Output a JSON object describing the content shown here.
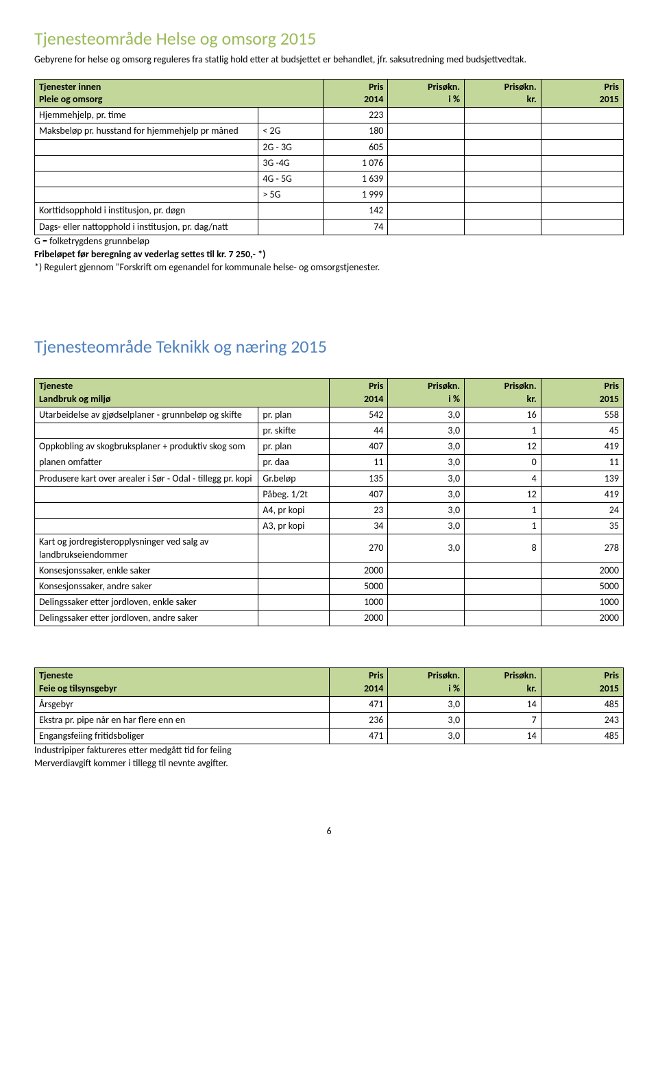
{
  "colors": {
    "table_header_bg": "#c4d79b",
    "title_color_1": "#9bbb59",
    "title_color_2": "#4f81bd",
    "border_color": "#000000"
  },
  "section1": {
    "title": "Tjenesteområde Helse og omsorg 2015",
    "intro": "Gebyrene for helse og omsorg reguleres fra statlig hold etter at budsjettet er behandlet, jfr. saksutredning med budsjettvedtak.",
    "header": {
      "left1": "Tjenester innen",
      "left2": "Pleie og omsorg",
      "c1a": "Pris",
      "c1b": "2014",
      "c2a": "Prisøkn.",
      "c2b": "i %",
      "c3a": "Prisøkn.",
      "c3b": "kr.",
      "c4a": "Pris",
      "c4b": "2015"
    },
    "rows": [
      {
        "l": "Hjemmehjelp, pr. time",
        "a": "",
        "b": "223"
      },
      {
        "l": "Maksbeløp pr. husstand for hjemmehjelp pr måned",
        "a": "< 2G",
        "b": "180"
      },
      {
        "l": "",
        "a": "2G - 3G",
        "b": "605"
      },
      {
        "l": "",
        "a": "3G -4G",
        "b": "1 076"
      },
      {
        "l": "",
        "a": "4G - 5G",
        "b": "1 639"
      },
      {
        "l": "",
        "a": "> 5G",
        "b": "1 999"
      },
      {
        "l": "Korttidsopphold i institusjon, pr. døgn",
        "a": "",
        "b": "142"
      },
      {
        "l": "Dags- eller nattopphold i institusjon, pr. dag/natt",
        "a": "",
        "b": "74"
      }
    ],
    "foot1": "G = folketrygdens grunnbeløp",
    "foot2": "Fribeløpet før beregning av vederlag settes til kr. 7 250,- *)",
    "foot3": "*) Regulert gjennom \"Forskrift om egenandel for kommunale helse- og omsorgstjenester."
  },
  "section2": {
    "title": "Tjenesteområde Teknikk og næring 2015",
    "header": {
      "left1": "Tjeneste",
      "left2": "Landbruk og miljø",
      "c1a": "Pris",
      "c1b": "2014",
      "c2a": "Prisøkn.",
      "c2b": "i %",
      "c3a": "Prisøkn.",
      "c3b": "kr.",
      "c4a": "Pris",
      "c4b": "2015"
    },
    "rows": [
      {
        "l": "Utarbeidelse av gjødselplaner - grunnbeløp og skifte",
        "a": "pr. plan",
        "b": "542",
        "c": "3,0",
        "d": "16",
        "e": "558"
      },
      {
        "l": "",
        "a": "pr. skifte",
        "b": "44",
        "c": "3,0",
        "d": "1",
        "e": "45"
      },
      {
        "l": "Oppkobling av skogbruksplaner + produktiv skog som",
        "a": "pr. plan",
        "b": "407",
        "c": "3,0",
        "d": "12",
        "e": "419",
        "nb": true
      },
      {
        "l": "planen omfatter",
        "a": "pr. daa",
        "b": "11",
        "c": "3,0",
        "d": "0",
        "e": "11",
        "nt": true
      },
      {
        "l": "Produsere kart over arealer i Sør - Odal - tillegg pr. kopi",
        "a": "Gr.beløp",
        "b": "135",
        "c": "3,0",
        "d": "4",
        "e": "139"
      },
      {
        "l": "",
        "a": "Påbeg. 1/2t",
        "b": "407",
        "c": "3,0",
        "d": "12",
        "e": "419"
      },
      {
        "l": "",
        "a": "A4, pr kopi",
        "b": "23",
        "c": "3,0",
        "d": "1",
        "e": "24"
      },
      {
        "l": "",
        "a": "A3, pr kopi",
        "b": "34",
        "c": "3,0",
        "d": "1",
        "e": "35"
      },
      {
        "l": "Kart og jordregisteropplysninger ved salg av landbrukseiendommer",
        "a": "",
        "b": "270",
        "c": "3,0",
        "d": "8",
        "e": "278"
      },
      {
        "l": "Konsesjonssaker, enkle saker",
        "a": "",
        "b": "2000",
        "c": "",
        "d": "",
        "e": "2000"
      },
      {
        "l": "Konsesjonssaker, andre saker",
        "a": "",
        "b": "5000",
        "c": "",
        "d": "",
        "e": "5000"
      },
      {
        "l": "Delingssaker etter jordloven, enkle saker",
        "a": "",
        "b": "1000",
        "c": "",
        "d": "",
        "e": "1000"
      },
      {
        "l": "Delingssaker etter jordloven, andre saker",
        "a": "",
        "b": "2000",
        "c": "",
        "d": "",
        "e": "2000"
      }
    ]
  },
  "section3": {
    "header": {
      "left1": "Tjeneste",
      "left2": "Feie og tilsynsgebyr",
      "c1a": "Pris",
      "c1b": "2014",
      "c2a": "Prisøkn.",
      "c2b": "i %",
      "c3a": "Prisøkn.",
      "c3b": "kr.",
      "c4a": "Pris",
      "c4b": "2015"
    },
    "rows": [
      {
        "l": "Årsgebyr",
        "b": "471",
        "c": "3,0",
        "d": "14",
        "e": "485"
      },
      {
        "l": "Ekstra pr. pipe når en har flere enn en",
        "b": "236",
        "c": "3,0",
        "d": "7",
        "e": "243"
      },
      {
        "l": "Engangsfeiing fritidsboliger",
        "b": "471",
        "c": "3,0",
        "d": "14",
        "e": "485"
      }
    ],
    "foot1": "Industripiper faktureres etter medgått tid for feiing",
    "foot2": "Merverdiavgift kommer i tillegg til nevnte avgifter."
  },
  "page_number": "6"
}
